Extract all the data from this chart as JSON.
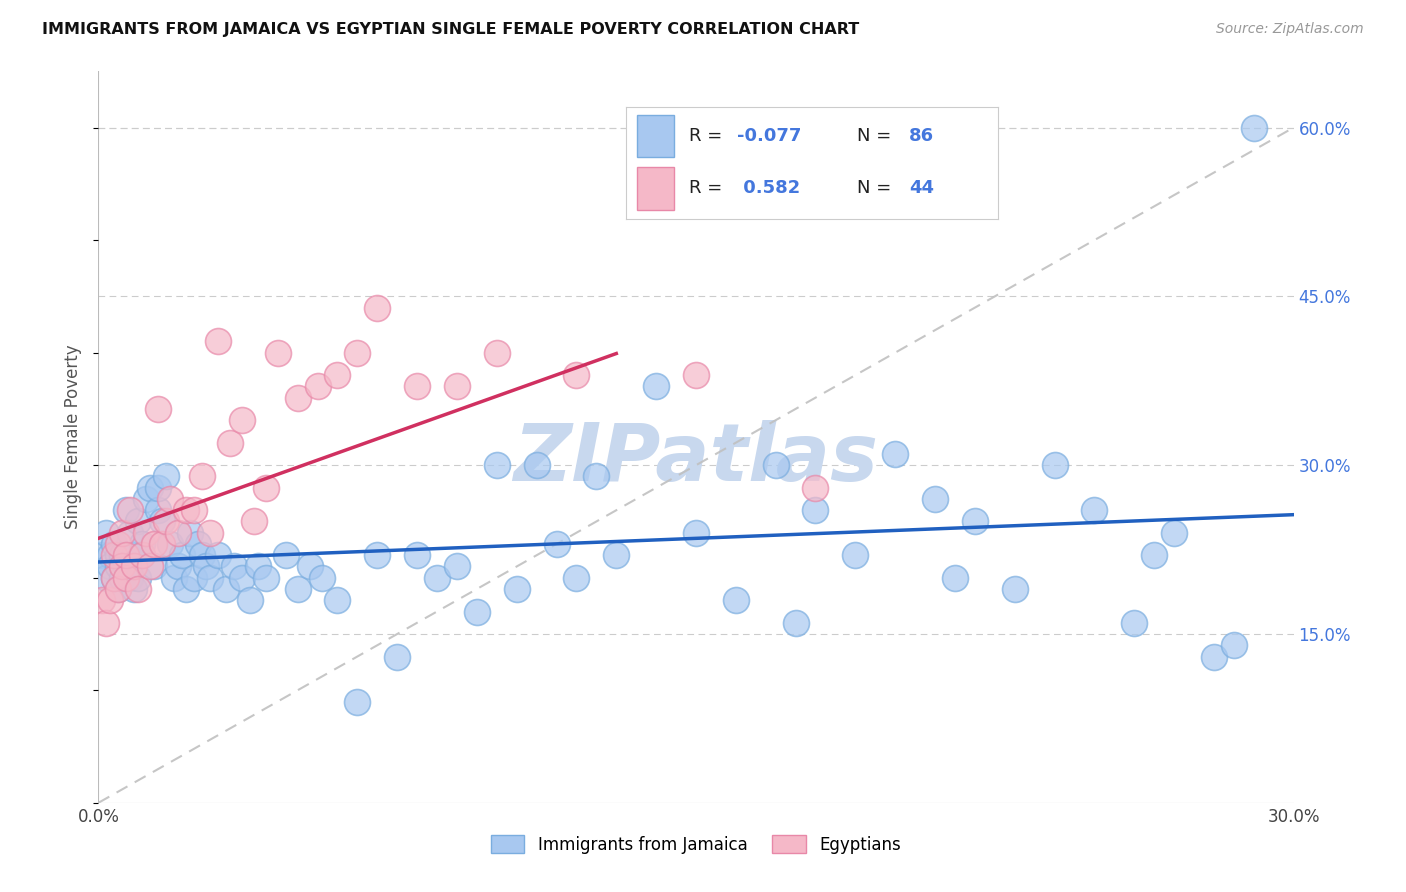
{
  "title": "IMMIGRANTS FROM JAMAICA VS EGYPTIAN SINGLE FEMALE POVERTY CORRELATION CHART",
  "source": "Source: ZipAtlas.com",
  "ylabel": "Single Female Poverty",
  "xlim": [
    0.0,
    0.3
  ],
  "ylim": [
    0.0,
    0.65
  ],
  "y_ticks_right": [
    0.15,
    0.3,
    0.45,
    0.6
  ],
  "y_tick_labels_right": [
    "15.0%",
    "30.0%",
    "45.0%",
    "60.0%"
  ],
  "blue_color": "#a8c8f0",
  "blue_edge_color": "#7aaddf",
  "pink_color": "#f5b8c8",
  "pink_edge_color": "#e888a8",
  "blue_line_color": "#2060c0",
  "pink_line_color": "#d03060",
  "diag_line_color": "#c0c0c0",
  "grid_color": "#cccccc",
  "watermark_color": "#c8d8ee",
  "legend_r_blue": "-0.077",
  "legend_n_blue": "86",
  "legend_r_pink": "0.582",
  "legend_n_pink": "44",
  "legend_label_blue": "Immigrants from Jamaica",
  "legend_label_pink": "Egyptians",
  "jamaica_x": [
    0.001,
    0.002,
    0.002,
    0.003,
    0.003,
    0.004,
    0.004,
    0.005,
    0.005,
    0.005,
    0.006,
    0.006,
    0.007,
    0.007,
    0.008,
    0.008,
    0.009,
    0.009,
    0.01,
    0.01,
    0.011,
    0.011,
    0.012,
    0.013,
    0.014,
    0.015,
    0.015,
    0.016,
    0.017,
    0.018,
    0.019,
    0.02,
    0.021,
    0.022,
    0.023,
    0.024,
    0.025,
    0.026,
    0.027,
    0.028,
    0.03,
    0.032,
    0.034,
    0.036,
    0.038,
    0.04,
    0.042,
    0.047,
    0.05,
    0.053,
    0.056,
    0.06,
    0.065,
    0.07,
    0.075,
    0.08,
    0.085,
    0.09,
    0.095,
    0.1,
    0.105,
    0.11,
    0.115,
    0.12,
    0.125,
    0.13,
    0.14,
    0.15,
    0.16,
    0.17,
    0.175,
    0.18,
    0.19,
    0.2,
    0.21,
    0.215,
    0.22,
    0.23,
    0.24,
    0.25,
    0.26,
    0.265,
    0.27,
    0.28,
    0.285,
    0.29
  ],
  "jamaica_y": [
    0.22,
    0.24,
    0.2,
    0.22,
    0.21,
    0.23,
    0.2,
    0.21,
    0.22,
    0.19,
    0.22,
    0.2,
    0.26,
    0.21,
    0.24,
    0.2,
    0.22,
    0.19,
    0.25,
    0.2,
    0.23,
    0.22,
    0.27,
    0.28,
    0.21,
    0.26,
    0.28,
    0.25,
    0.29,
    0.23,
    0.2,
    0.21,
    0.22,
    0.19,
    0.24,
    0.2,
    0.23,
    0.22,
    0.21,
    0.2,
    0.22,
    0.19,
    0.21,
    0.2,
    0.18,
    0.21,
    0.2,
    0.22,
    0.19,
    0.21,
    0.2,
    0.18,
    0.09,
    0.22,
    0.13,
    0.22,
    0.2,
    0.21,
    0.17,
    0.3,
    0.19,
    0.3,
    0.23,
    0.2,
    0.29,
    0.22,
    0.37,
    0.24,
    0.18,
    0.3,
    0.16,
    0.26,
    0.22,
    0.31,
    0.27,
    0.2,
    0.25,
    0.19,
    0.3,
    0.26,
    0.16,
    0.22,
    0.24,
    0.13,
    0.14,
    0.6
  ],
  "egypt_x": [
    0.001,
    0.002,
    0.003,
    0.004,
    0.004,
    0.005,
    0.005,
    0.006,
    0.006,
    0.007,
    0.007,
    0.008,
    0.009,
    0.01,
    0.011,
    0.012,
    0.013,
    0.014,
    0.015,
    0.016,
    0.017,
    0.018,
    0.02,
    0.022,
    0.024,
    0.026,
    0.028,
    0.03,
    0.033,
    0.036,
    0.039,
    0.042,
    0.045,
    0.05,
    0.055,
    0.06,
    0.065,
    0.07,
    0.08,
    0.09,
    0.1,
    0.12,
    0.15,
    0.18
  ],
  "egypt_y": [
    0.18,
    0.16,
    0.18,
    0.2,
    0.22,
    0.19,
    0.23,
    0.21,
    0.24,
    0.2,
    0.22,
    0.26,
    0.21,
    0.19,
    0.22,
    0.24,
    0.21,
    0.23,
    0.35,
    0.23,
    0.25,
    0.27,
    0.24,
    0.26,
    0.26,
    0.29,
    0.24,
    0.41,
    0.32,
    0.34,
    0.25,
    0.28,
    0.4,
    0.36,
    0.37,
    0.38,
    0.4,
    0.44,
    0.37,
    0.37,
    0.4,
    0.38,
    0.38,
    0.28
  ]
}
